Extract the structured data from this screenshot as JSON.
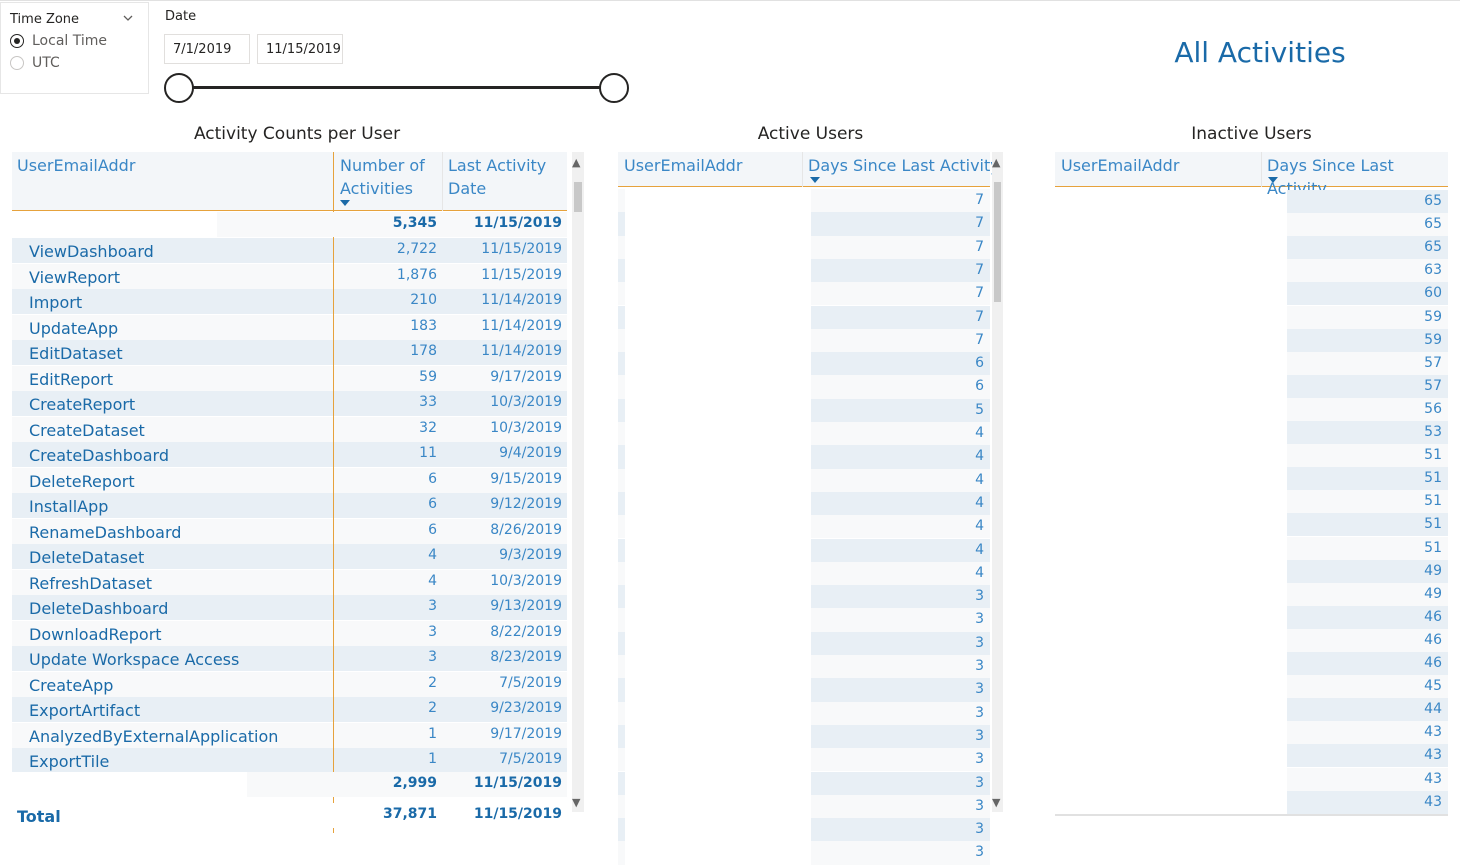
{
  "timezone": {
    "label": "Time Zone",
    "options": [
      "Local Time",
      "UTC"
    ],
    "selected": "Local Time"
  },
  "date": {
    "label": "Date",
    "start": "7/1/2019",
    "end": "11/15/2019"
  },
  "page_title": "All Activities",
  "activity_counts": {
    "title": "Activity Counts per User",
    "columns": [
      "UserEmailAddr",
      "Number of Activities",
      "Last Activity Date"
    ],
    "col_header_1a": "Number of",
    "col_header_1b": "Activities",
    "col_header_2a": "Last Activity",
    "col_header_2b": "Date",
    "group1_count": "5,345",
    "group1_date": "11/15/2019",
    "rows": [
      {
        "name": "ViewDashboard",
        "count": "2,722",
        "date": "11/15/2019"
      },
      {
        "name": "ViewReport",
        "count": "1,876",
        "date": "11/15/2019"
      },
      {
        "name": "Import",
        "count": "210",
        "date": "11/14/2019"
      },
      {
        "name": "UpdateApp",
        "count": "183",
        "date": "11/14/2019"
      },
      {
        "name": "EditDataset",
        "count": "178",
        "date": "11/14/2019"
      },
      {
        "name": "EditReport",
        "count": "59",
        "date": "9/17/2019"
      },
      {
        "name": "CreateReport",
        "count": "33",
        "date": "10/3/2019"
      },
      {
        "name": "CreateDataset",
        "count": "32",
        "date": "10/3/2019"
      },
      {
        "name": "CreateDashboard",
        "count": "11",
        "date": "9/4/2019"
      },
      {
        "name": "DeleteReport",
        "count": "6",
        "date": "9/15/2019"
      },
      {
        "name": "InstallApp",
        "count": "6",
        "date": "9/12/2019"
      },
      {
        "name": "RenameDashboard",
        "count": "6",
        "date": "8/26/2019"
      },
      {
        "name": "DeleteDataset",
        "count": "4",
        "date": "9/3/2019"
      },
      {
        "name": "RefreshDataset",
        "count": "4",
        "date": "10/3/2019"
      },
      {
        "name": "DeleteDashboard",
        "count": "3",
        "date": "9/13/2019"
      },
      {
        "name": "DownloadReport",
        "count": "3",
        "date": "8/22/2019"
      },
      {
        "name": "Update Workspace Access",
        "count": "3",
        "date": "8/23/2019"
      },
      {
        "name": "CreateApp",
        "count": "2",
        "date": "7/5/2019"
      },
      {
        "name": "ExportArtifact",
        "count": "2",
        "date": "9/23/2019"
      },
      {
        "name": "AnalyzedByExternalApplication",
        "count": "1",
        "date": "9/17/2019"
      },
      {
        "name": "ExportTile",
        "count": "1",
        "date": "7/5/2019"
      }
    ],
    "group2_count": "2,999",
    "group2_date": "11/15/2019",
    "total_label": "Total",
    "total_count": "37,871",
    "total_date": "11/15/2019"
  },
  "active_users": {
    "title": "Active Users",
    "col_user": "UserEmailAddr",
    "col_days": "Days Since Last Activity",
    "days": [
      "7",
      "7",
      "7",
      "7",
      "7",
      "7",
      "7",
      "6",
      "6",
      "5",
      "4",
      "4",
      "4",
      "4",
      "4",
      "4",
      "4",
      "3",
      "3",
      "3",
      "3",
      "3",
      "3",
      "3",
      "3",
      "3",
      "3",
      "3",
      "3"
    ]
  },
  "inactive_users": {
    "title": "Inactive Users",
    "col_user": "UserEmailAddr",
    "col_days": "Days Since Last Activity",
    "days": [
      "65",
      "65",
      "65",
      "63",
      "60",
      "59",
      "59",
      "57",
      "57",
      "56",
      "53",
      "51",
      "51",
      "51",
      "51",
      "51",
      "49",
      "49",
      "46",
      "46",
      "46",
      "45",
      "44",
      "43",
      "43",
      "43",
      "43"
    ]
  }
}
